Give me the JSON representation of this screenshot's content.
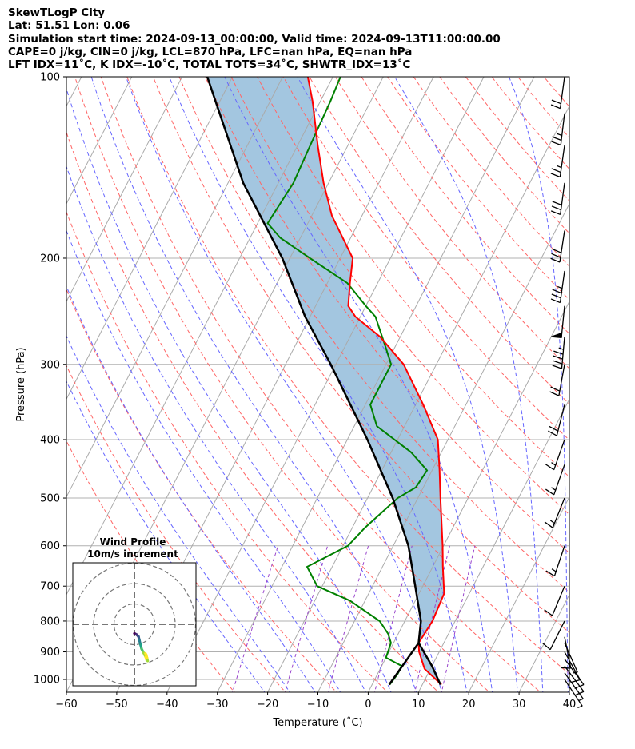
{
  "header": {
    "lines": [
      "SkewTLogP City",
      "Lat: 51.51   Lon: 0.06",
      "Simulation start time: 2024-09-13_00:00:00, Valid time: 2024-09-13T11:00:00.00",
      "CAPE=0 j/kg, CIN=0 j/kg, LCL=870 hPa, LFC=nan hPa, EQ=nan hPa",
      "LFT IDX=11˚C, K IDX=-10˚C, TOTAL TOTS=34˚C, SHWTR_IDX=13˚C"
    ]
  },
  "colors": {
    "temperature": "#ff0000",
    "dewpoint": "#008000",
    "parcel": "#000000",
    "cape_fill": "#a3c6e0",
    "dry_adiabat": "#ff6666",
    "moist_adiabat": "#6666ff",
    "mixing_ratio": "#9944cc",
    "isotherm": "#aaaaaa"
  },
  "chart_data": {
    "type": "skew-t log-p",
    "title": "SkewTLogP City",
    "xlabel": "Temperature (˚C)",
    "ylabel": "Pressure (hPa)",
    "xlim": [
      -60,
      40
    ],
    "ylim": [
      1050,
      100
    ],
    "x_ticks": [
      -60,
      -50,
      -40,
      -30,
      -20,
      -10,
      0,
      10,
      20,
      30,
      40
    ],
    "y_ticks": [
      1000,
      900,
      800,
      700,
      600,
      500,
      400,
      300,
      200,
      100
    ],
    "temperature_profile": [
      [
        1020,
        13.8
      ],
      [
        960,
        8.8
      ],
      [
        900,
        6.0
      ],
      [
        870,
        5.0
      ],
      [
        800,
        5.5
      ],
      [
        720,
        5.0
      ],
      [
        650,
        2.0
      ],
      [
        600,
        -0.2
      ],
      [
        500,
        -5.5
      ],
      [
        450,
        -8.5
      ],
      [
        400,
        -12.0
      ],
      [
        350,
        -18.5
      ],
      [
        300,
        -26.5
      ],
      [
        270,
        -34.0
      ],
      [
        250,
        -41.0
      ],
      [
        240,
        -43.5
      ],
      [
        220,
        -45.5
      ],
      [
        200,
        -47.5
      ],
      [
        170,
        -56.0
      ],
      [
        150,
        -61.0
      ],
      [
        130,
        -66.0
      ],
      [
        110,
        -71.5
      ],
      [
        100,
        -75.0
      ]
    ],
    "dewpoint_profile": [
      [
        1020,
        3.5
      ],
      [
        980,
        4.0
      ],
      [
        950,
        4.0
      ],
      [
        920,
        0.0
      ],
      [
        870,
        -0.5
      ],
      [
        840,
        -2.0
      ],
      [
        800,
        -5.0
      ],
      [
        740,
        -13.0
      ],
      [
        700,
        -21.0
      ],
      [
        650,
        -25.0
      ],
      [
        600,
        -19.0
      ],
      [
        560,
        -17.5
      ],
      [
        500,
        -14.0
      ],
      [
        480,
        -11.5
      ],
      [
        450,
        -11.0
      ],
      [
        420,
        -16.0
      ],
      [
        380,
        -25.5
      ],
      [
        350,
        -29.0
      ],
      [
        330,
        -29.0
      ],
      [
        300,
        -29.0
      ],
      [
        280,
        -32.0
      ],
      [
        250,
        -37.0
      ],
      [
        240,
        -40.0
      ],
      [
        220,
        -46.0
      ],
      [
        200,
        -56.0
      ],
      [
        185,
        -64.0
      ],
      [
        175,
        -68.0
      ],
      [
        150,
        -67.0
      ],
      [
        130,
        -67.5
      ],
      [
        110,
        -68.0
      ],
      [
        100,
        -68.5
      ]
    ],
    "parcel_profile": [
      [
        1020,
        13.6
      ],
      [
        950,
        10.0
      ],
      [
        870,
        5.0
      ],
      [
        800,
        3.2
      ],
      [
        700,
        -1.5
      ],
      [
        600,
        -7.0
      ],
      [
        500,
        -15.0
      ],
      [
        400,
        -26.0
      ],
      [
        300,
        -41.0
      ],
      [
        250,
        -51.0
      ],
      [
        200,
        -61.5
      ],
      [
        150,
        -77.0
      ],
      [
        100,
        -95.0
      ]
    ],
    "lcl_segment": [
      [
        1020,
        3.4
      ],
      [
        870,
        5.0
      ]
    ],
    "wind_barbs": [
      {
        "p": 1000,
        "u": -4,
        "v": 6
      },
      {
        "p": 975,
        "u": -5,
        "v": 7
      },
      {
        "p": 950,
        "u": -6,
        "v": 8
      },
      {
        "p": 925,
        "u": -6,
        "v": 8
      },
      {
        "p": 900,
        "u": -5,
        "v": 9
      },
      {
        "p": 870,
        "u": -4,
        "v": 9
      },
      {
        "p": 850,
        "u": -2,
        "v": 10
      },
      {
        "p": 800,
        "u": 5,
        "v": 10
      },
      {
        "p": 700,
        "u": 5,
        "v": 12
      },
      {
        "p": 600,
        "u": 5,
        "v": 15
      },
      {
        "p": 500,
        "u": 6,
        "v": 15
      },
      {
        "p": 440,
        "u": 6,
        "v": 17
      },
      {
        "p": 400,
        "u": 6,
        "v": 17
      },
      {
        "p": 350,
        "u": 5,
        "v": 20
      },
      {
        "p": 300,
        "u": 4,
        "v": 22
      },
      {
        "p": 270,
        "u": 4,
        "v": 45
      },
      {
        "p": 240,
        "u": 5,
        "v": 50
      },
      {
        "p": 210,
        "u": 5,
        "v": 36
      },
      {
        "p": 180,
        "u": 5,
        "v": 33
      },
      {
        "p": 150,
        "u": 4,
        "v": 30
      },
      {
        "p": 130,
        "u": 4,
        "v": 28
      },
      {
        "p": 115,
        "u": 3,
        "v": 25
      },
      {
        "p": 100,
        "u": 3,
        "v": 22
      }
    ],
    "hodograph": {
      "title": "Wind Profile",
      "subtitle": "10m/s increment",
      "points": [
        [
          0.0,
          -4.5
        ],
        [
          1.0,
          -5.0
        ],
        [
          2.0,
          -6.0
        ],
        [
          2.5,
          -8.0
        ],
        [
          3.0,
          -10.0
        ],
        [
          3.5,
          -12.0
        ],
        [
          4.5,
          -14.0
        ],
        [
          5.5,
          -16.0
        ],
        [
          6.0,
          -17.5
        ],
        [
          6.5,
          -18.0
        ],
        [
          6.2,
          -16.5
        ],
        [
          5.8,
          -15.0
        ],
        [
          5.4,
          -14.3
        ]
      ],
      "rings": [
        10,
        20,
        30
      ]
    }
  }
}
